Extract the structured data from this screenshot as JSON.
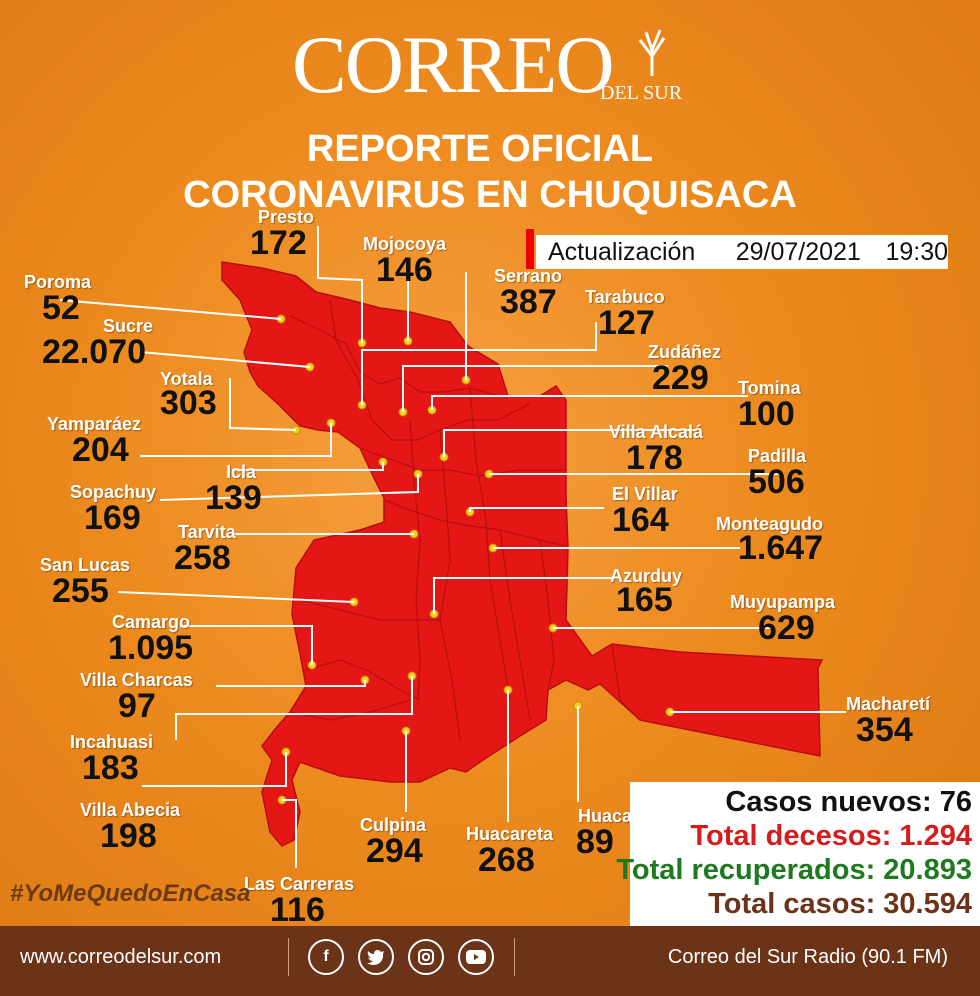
{
  "brand": {
    "name": "CORREO",
    "sub": "DEL SUR"
  },
  "header": {
    "line1": "REPORTE OFICIAL",
    "line2": "CORONAVIRUS EN CHUQUISACA"
  },
  "update": {
    "label": "Actualización",
    "date": "29/07/2021",
    "time": "19:30"
  },
  "municipalities": [
    {
      "name": "Presto",
      "cases": "172"
    },
    {
      "name": "Mojocoya",
      "cases": "146"
    },
    {
      "name": "Serrano",
      "cases": "387"
    },
    {
      "name": "Poroma",
      "cases": "52"
    },
    {
      "name": "Sucre",
      "cases": "22.070"
    },
    {
      "name": "Tarabuco",
      "cases": "127"
    },
    {
      "name": "Zudáñez",
      "cases": "229"
    },
    {
      "name": "Yotala",
      "cases": "303"
    },
    {
      "name": "Tomina",
      "cases": "100"
    },
    {
      "name": "Yamparáez",
      "cases": "204"
    },
    {
      "name": "Villa Alcalá",
      "cases": "178"
    },
    {
      "name": "Padilla",
      "cases": "506"
    },
    {
      "name": "Icla",
      "cases": "139"
    },
    {
      "name": "Sopachuy",
      "cases": "169"
    },
    {
      "name": "El Villar",
      "cases": "164"
    },
    {
      "name": "Monteagudo",
      "cases": "1.647"
    },
    {
      "name": "Tarvita",
      "cases": "258"
    },
    {
      "name": "San Lucas",
      "cases": "255"
    },
    {
      "name": "Azurduy",
      "cases": "165"
    },
    {
      "name": "Muyupampa",
      "cases": "629"
    },
    {
      "name": "Camargo",
      "cases": "1.095"
    },
    {
      "name": "Villa Charcas",
      "cases": "97"
    },
    {
      "name": "Macharetí",
      "cases": "354"
    },
    {
      "name": "Incahuasi",
      "cases": "183"
    },
    {
      "name": "Villa Abecia",
      "cases": "198"
    },
    {
      "name": "Culpina",
      "cases": "294"
    },
    {
      "name": "Huacareta",
      "cases": "268"
    },
    {
      "name": "Huacaya",
      "cases": "89"
    },
    {
      "name": "Las Carreras",
      "cases": "116"
    }
  ],
  "totals": {
    "new_cases": "Casos nuevos: 76",
    "deaths": "Total decesos: 1.294",
    "recovered": "Total recuperados: 20.893",
    "total": "Total casos: 30.594",
    "colors": {
      "new_cases": "#111111",
      "deaths": "#d41c1c",
      "recovered": "#1f7a1f",
      "total": "#6b3318"
    }
  },
  "hashtag": "#YoMeQuedoEnCasa",
  "footer": {
    "website": "www.correodelsur.com",
    "radio": "Correo del Sur Radio (90.1 FM)",
    "social_icons": [
      "facebook-icon",
      "twitter-icon",
      "instagram-icon",
      "youtube-icon"
    ]
  },
  "colors": {
    "background": "#ec8a1e",
    "map_fill": "#e51616",
    "footer": "#6b3318"
  }
}
